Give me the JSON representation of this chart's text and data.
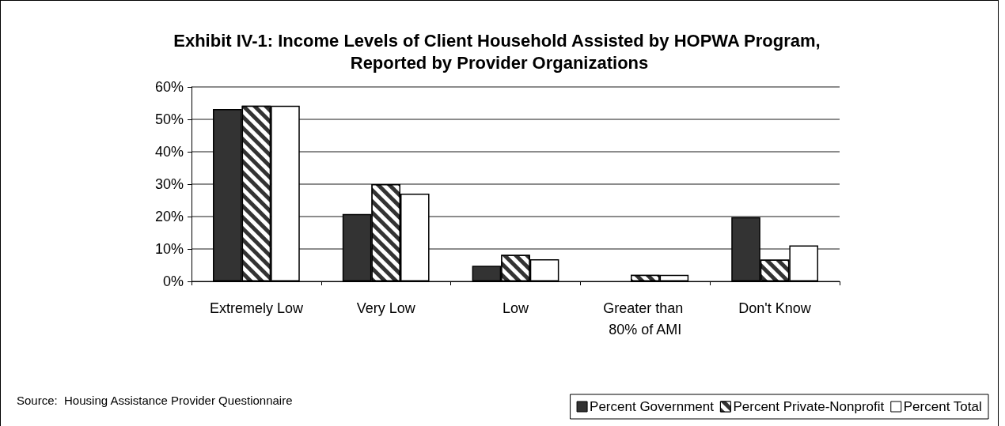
{
  "chart_data": {
    "type": "bar",
    "title": "Exhibit IV-1: Income Levels of Client Household Assisted by HOPWA Program, Reported by Provider Organizations",
    "categories": [
      "Extremely Low",
      "Very Low",
      "Low",
      "Greater than 80% of AMI",
      "Don't Know"
    ],
    "series": [
      {
        "name": "Percent Government",
        "color": "#333333",
        "values": [
          53.2,
          20.8,
          4.8,
          null,
          19.8
        ]
      },
      {
        "name": "Percent Private-Nonprofit",
        "color": "#333333",
        "values": [
          54.2,
          30,
          8.2,
          2,
          6.7
        ]
      },
      {
        "name": "Percent Total",
        "color": "#ffffff",
        "values": [
          54.2,
          27.1,
          6.8,
          2,
          11.1
        ]
      }
    ],
    "ylim": [
      0,
      60
    ],
    "yticks": [
      {
        "value": 0,
        "label": "0%"
      },
      {
        "value": 10,
        "label": "10%"
      },
      {
        "value": 20,
        "label": "20%"
      },
      {
        "value": 30,
        "label": "30%"
      },
      {
        "value": 40,
        "label": "40%"
      },
      {
        "value": 50,
        "label": "50%"
      },
      {
        "value": 60,
        "label": "60%"
      }
    ],
    "grid": "y",
    "legend": "bottom right",
    "annotations": [
      "Source:  Housing Assistance Provider Questionnaire"
    ]
  }
}
